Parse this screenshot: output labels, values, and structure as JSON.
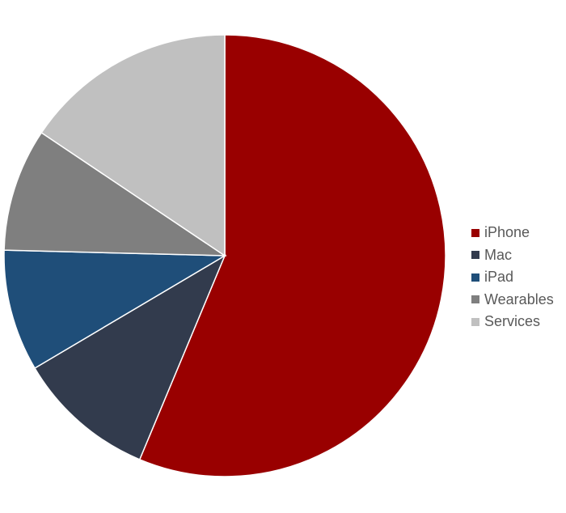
{
  "chart_data": {
    "type": "pie",
    "title": "",
    "start_angle_deg": 0,
    "direction": "clockwise",
    "slices": [
      {
        "label": "iPhone",
        "value": 56.3,
        "color": "#990000"
      },
      {
        "label": "Mac",
        "value": 10.2,
        "color": "#323B4D"
      },
      {
        "label": "iPad",
        "value": 8.9,
        "color": "#1F4E79"
      },
      {
        "label": "Wearables",
        "value": 9.0,
        "color": "#7F7F7F"
      },
      {
        "label": "Services",
        "value": 15.6,
        "color": "#C0C0C0"
      }
    ],
    "legend": {
      "position": "right"
    }
  }
}
